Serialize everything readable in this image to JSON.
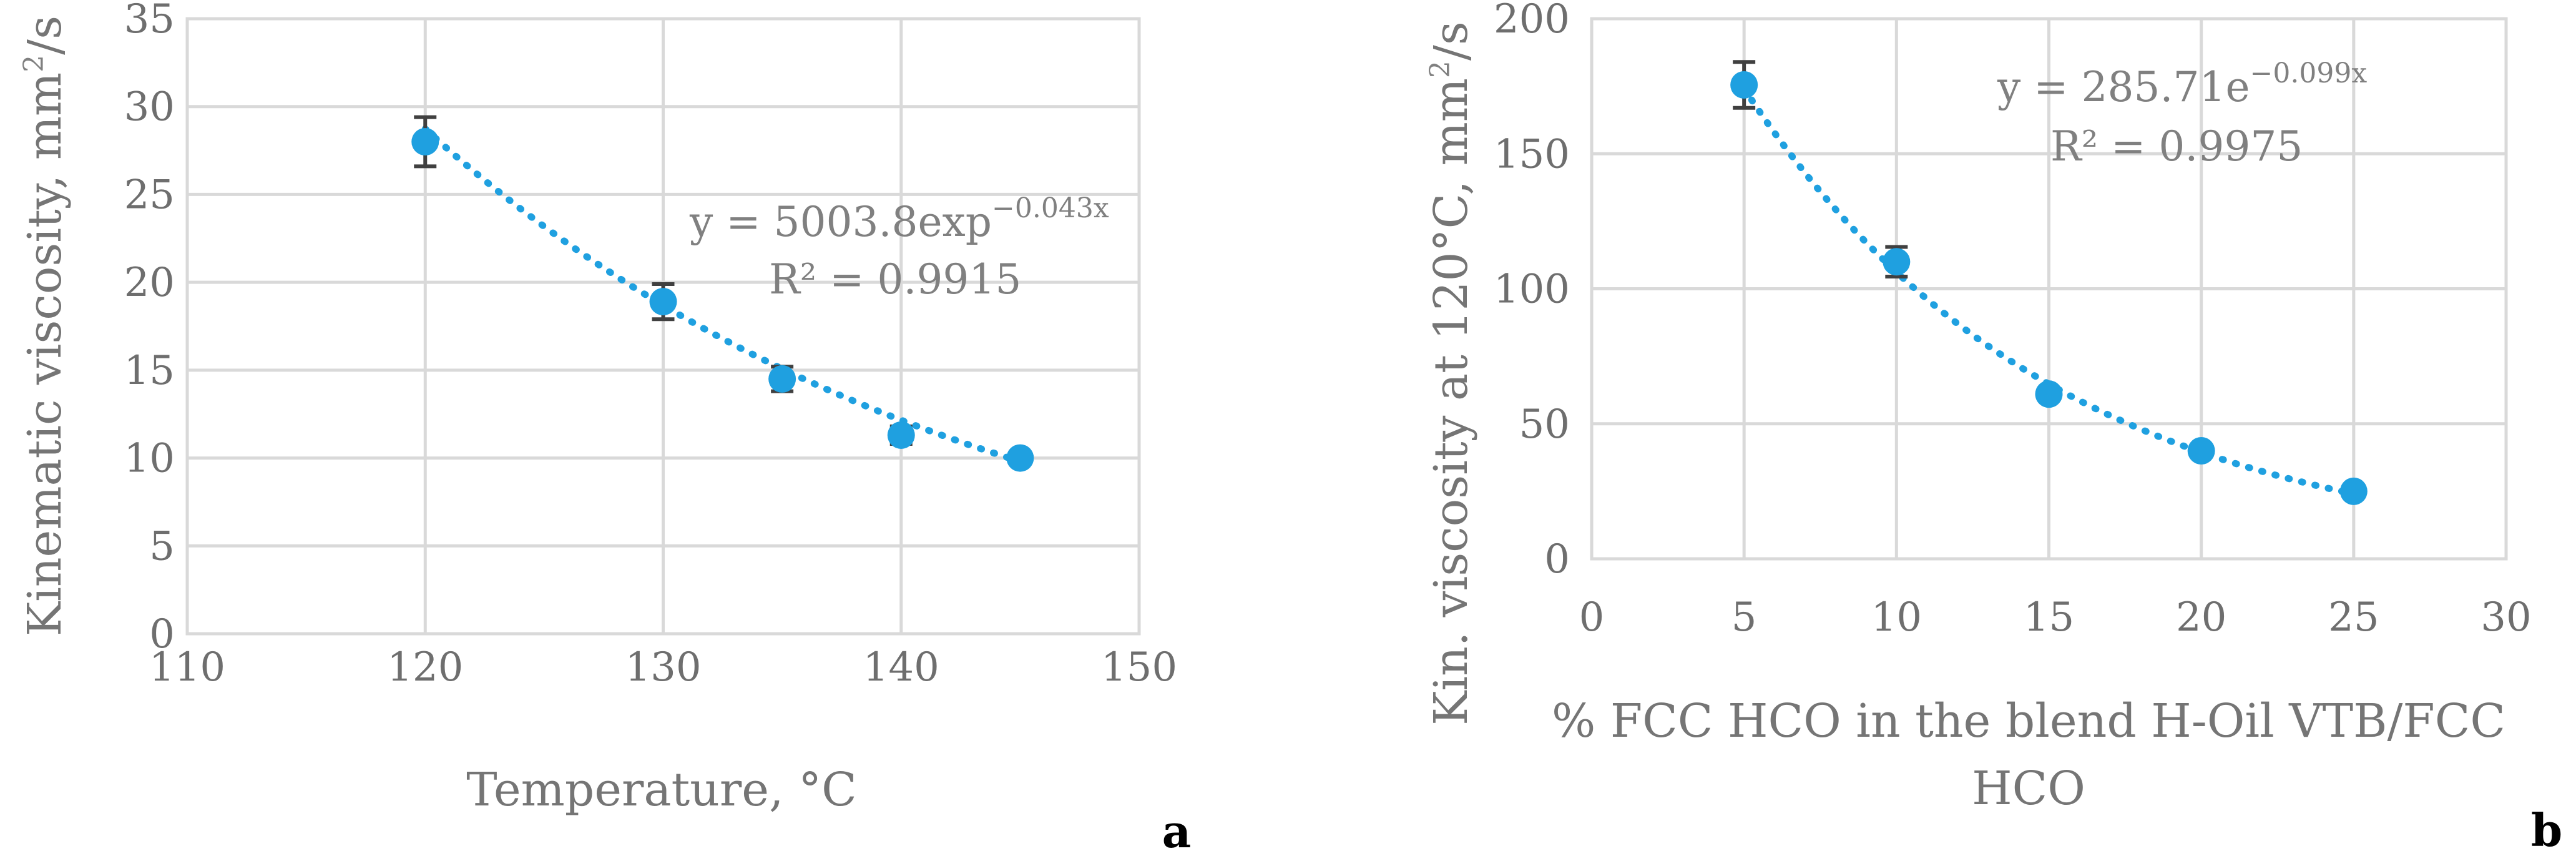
{
  "colors": {
    "series": "#1fa0e0",
    "errorbar": "#404040",
    "grid": "#d9d9d9",
    "tick_text": "#6e6e6e",
    "axis_title": "#757575",
    "equation": "#808080"
  },
  "chart_data": [
    {
      "type": "scatter",
      "panel_label": "a",
      "xlabel": "Temperature, °C",
      "ylabel_pre": "Kinematic viscosity, mm",
      "ylabel_sup": "2",
      "ylabel_post": "/s",
      "xlim": [
        110,
        150
      ],
      "ylim": [
        0,
        35
      ],
      "xticks": [
        110,
        120,
        130,
        140,
        150
      ],
      "yticks": [
        0,
        5,
        10,
        15,
        20,
        25,
        30,
        35
      ],
      "grid": true,
      "points": [
        {
          "x": 120,
          "y": 28.0,
          "err": 1.4
        },
        {
          "x": 130,
          "y": 18.9,
          "err": 1.0
        },
        {
          "x": 135,
          "y": 14.5,
          "err": 0.7
        },
        {
          "x": 140,
          "y": 11.3,
          "err": 0.5
        },
        {
          "x": 145,
          "y": 10.0,
          "err": 0.3
        }
      ],
      "trendline": {
        "type": "exponential",
        "a": 5003.8,
        "b": -0.043,
        "from": 120,
        "to": 145
      },
      "equation_base": "y = 5003.8exp",
      "equation_sup": "−0.043x",
      "r2": "R² = 0.9915"
    },
    {
      "type": "scatter",
      "panel_label": "b",
      "xlabel_line1": "% FCC HCO in the blend H-Oil VTB/FCC",
      "xlabel_line2": "HCO",
      "ylabel_pre": "Kin. viscosity at 120°C, mm",
      "ylabel_sup": "2",
      "ylabel_post": "/s",
      "xlim": [
        0,
        30
      ],
      "ylim": [
        0,
        200
      ],
      "xticks": [
        0,
        5,
        10,
        15,
        20,
        25,
        30
      ],
      "yticks": [
        0,
        50,
        100,
        150,
        200
      ],
      "grid": true,
      "points": [
        {
          "x": 5,
          "y": 175.5,
          "err": 8.5
        },
        {
          "x": 10,
          "y": 110.0,
          "err": 5.5
        },
        {
          "x": 15,
          "y": 61.0,
          "err": 1.5
        },
        {
          "x": 20,
          "y": 40.0,
          "err": 1.0
        },
        {
          "x": 25,
          "y": 25.0,
          "err": 0.5
        }
      ],
      "trendline": {
        "type": "exponential",
        "a": 285.71,
        "b": -0.099,
        "from": 5,
        "to": 25
      },
      "equation_base": "y = 285.71e",
      "equation_sup": "−0.099x",
      "r2": "R² = 0.9975"
    }
  ]
}
